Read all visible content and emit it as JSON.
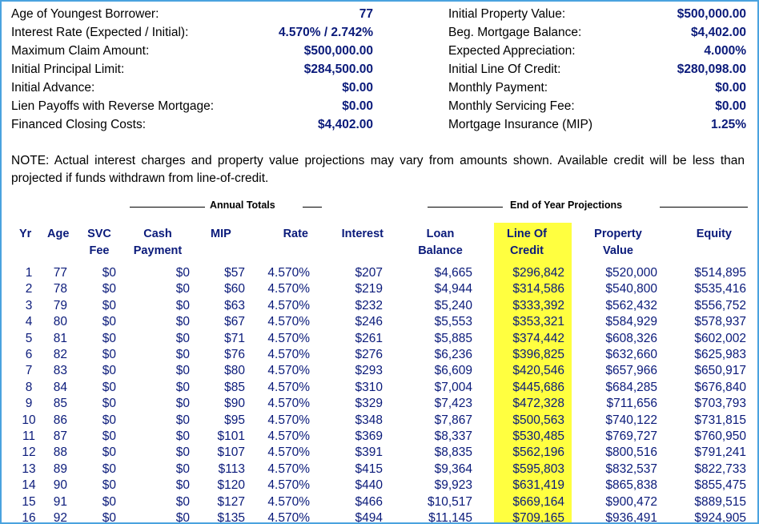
{
  "left_summary": [
    {
      "label": "Age of Youngest Borrower:",
      "value": "77"
    },
    {
      "label": "Interest Rate (Expected / Initial):",
      "value": "4.570%  /  2.742%"
    },
    {
      "label": "Maximum Claim Amount:",
      "value": "$500,000.00"
    },
    {
      "label": "Initial Principal Limit:",
      "value": "$284,500.00"
    },
    {
      "label": "Initial Advance:",
      "value": "$0.00"
    },
    {
      "label": "Lien Payoffs with Reverse Mortgage:",
      "value": "$0.00"
    },
    {
      "label": "Financed Closing Costs:",
      "value": "$4,402.00"
    }
  ],
  "right_summary": [
    {
      "label": "Initial Property Value:",
      "value": "$500,000.00"
    },
    {
      "label": "Beg. Mortgage Balance:",
      "value": "$4,402.00"
    },
    {
      "label": "Expected Appreciation:",
      "value": "4.000%"
    },
    {
      "label": "Initial Line Of Credit:",
      "value": "$280,098.00"
    },
    {
      "label": "Monthly Payment:",
      "value": "$0.00"
    },
    {
      "label": "Monthly Servicing Fee:",
      "value": "$0.00"
    },
    {
      "label": "Mortgage Insurance (MIP)",
      "value": "1.25%"
    }
  ],
  "note": "NOTE: Actual interest charges and property value projections may vary from amounts shown. Available credit will be less than projected if funds withdrawn from line-of-credit.",
  "groups": {
    "annual": "Annual Totals",
    "projections": "End of Year Projections"
  },
  "headers": {
    "yr": "Yr",
    "age": "Age",
    "svc1": "SVC",
    "svc2": "Fee",
    "cash1": "Cash",
    "cash2": "Payment",
    "mip": "MIP",
    "rate": "Rate",
    "interest": "Interest",
    "loan1": "Loan",
    "loan2": "Balance",
    "loc1": "Line Of",
    "loc2": "Credit",
    "prop1": "Property",
    "prop2": "Value",
    "equity": "Equity"
  },
  "highlight_color": "#ffff40",
  "rows": [
    [
      "1",
      "77",
      "$0",
      "$0",
      "$57",
      "4.570%",
      "$207",
      "$4,665",
      "$296,842",
      "$520,000",
      "$514,895"
    ],
    [
      "2",
      "78",
      "$0",
      "$0",
      "$60",
      "4.570%",
      "$219",
      "$4,944",
      "$314,586",
      "$540,800",
      "$535,416"
    ],
    [
      "3",
      "79",
      "$0",
      "$0",
      "$63",
      "4.570%",
      "$232",
      "$5,240",
      "$333,392",
      "$562,432",
      "$556,752"
    ],
    [
      "4",
      "80",
      "$0",
      "$0",
      "$67",
      "4.570%",
      "$246",
      "$5,553",
      "$353,321",
      "$584,929",
      "$578,937"
    ],
    [
      "5",
      "81",
      "$0",
      "$0",
      "$71",
      "4.570%",
      "$261",
      "$5,885",
      "$374,442",
      "$608,326",
      "$602,002"
    ],
    [
      "6",
      "82",
      "$0",
      "$0",
      "$76",
      "4.570%",
      "$276",
      "$6,236",
      "$396,825",
      "$632,660",
      "$625,983"
    ],
    [
      "7",
      "83",
      "$0",
      "$0",
      "$80",
      "4.570%",
      "$293",
      "$6,609",
      "$420,546",
      "$657,966",
      "$650,917"
    ],
    [
      "8",
      "84",
      "$0",
      "$0",
      "$85",
      "4.570%",
      "$310",
      "$7,004",
      "$445,686",
      "$684,285",
      "$676,840"
    ],
    [
      "9",
      "85",
      "$0",
      "$0",
      "$90",
      "4.570%",
      "$329",
      "$7,423",
      "$472,328",
      "$711,656",
      "$703,793"
    ],
    [
      "10",
      "86",
      "$0",
      "$0",
      "$95",
      "4.570%",
      "$348",
      "$7,867",
      "$500,563",
      "$740,122",
      "$731,815"
    ],
    [
      "11",
      "87",
      "$0",
      "$0",
      "$101",
      "4.570%",
      "$369",
      "$8,337",
      "$530,485",
      "$769,727",
      "$760,950"
    ],
    [
      "12",
      "88",
      "$0",
      "$0",
      "$107",
      "4.570%",
      "$391",
      "$8,835",
      "$562,196",
      "$800,516",
      "$791,241"
    ],
    [
      "13",
      "89",
      "$0",
      "$0",
      "$113",
      "4.570%",
      "$415",
      "$9,364",
      "$595,803",
      "$832,537",
      "$822,733"
    ],
    [
      "14",
      "90",
      "$0",
      "$0",
      "$120",
      "4.570%",
      "$440",
      "$9,923",
      "$631,419",
      "$865,838",
      "$855,475"
    ],
    [
      "15",
      "91",
      "$0",
      "$0",
      "$127",
      "4.570%",
      "$466",
      "$10,517",
      "$669,164",
      "$900,472",
      "$889,515"
    ],
    [
      "16",
      "92",
      "$0",
      "$0",
      "$135",
      "4.570%",
      "$494",
      "$11,145",
      "$709,165",
      "$936,491",
      "$924,905"
    ]
  ]
}
